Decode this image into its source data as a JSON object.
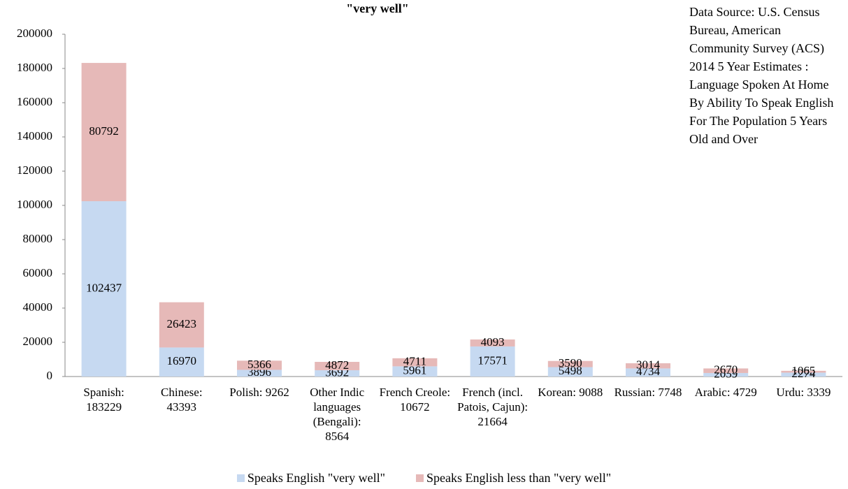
{
  "chart_data": {
    "type": "stacked_bar",
    "title": "\"very well\"",
    "annotation": "Data Source: U.S. Census Bureau, American Community Survey (ACS) 2014  5 Year Estimates : Language Spoken At Home By Ability To Speak English For The Population 5 Years Old and Over",
    "categories": [
      "Spanish: 183229",
      "Chinese: 43393",
      "Polish: 9262",
      "Other Indic languages (Bengali): 8564",
      "French Creole: 10672",
      "French (incl. Patois, Cajun): 21664",
      "Korean: 9088",
      "Russian: 7748",
      "Arabic: 4729",
      "Urdu: 3339"
    ],
    "series": [
      {
        "name": "Speaks English \"very well\"",
        "color": "#c6d9f1",
        "values": [
          102437,
          16970,
          3896,
          3692,
          5961,
          17571,
          5498,
          4734,
          2059,
          2274
        ]
      },
      {
        "name": "Speaks English less than \"very well\"",
        "color": "#e6b9b8",
        "values": [
          80792,
          26423,
          5366,
          4872,
          4711,
          4093,
          3590,
          3014,
          2670,
          1065
        ]
      }
    ],
    "ylim": [
      0,
      200000
    ],
    "yticks": [
      0,
      20000,
      40000,
      60000,
      80000,
      100000,
      120000,
      140000,
      160000,
      180000,
      200000
    ]
  }
}
